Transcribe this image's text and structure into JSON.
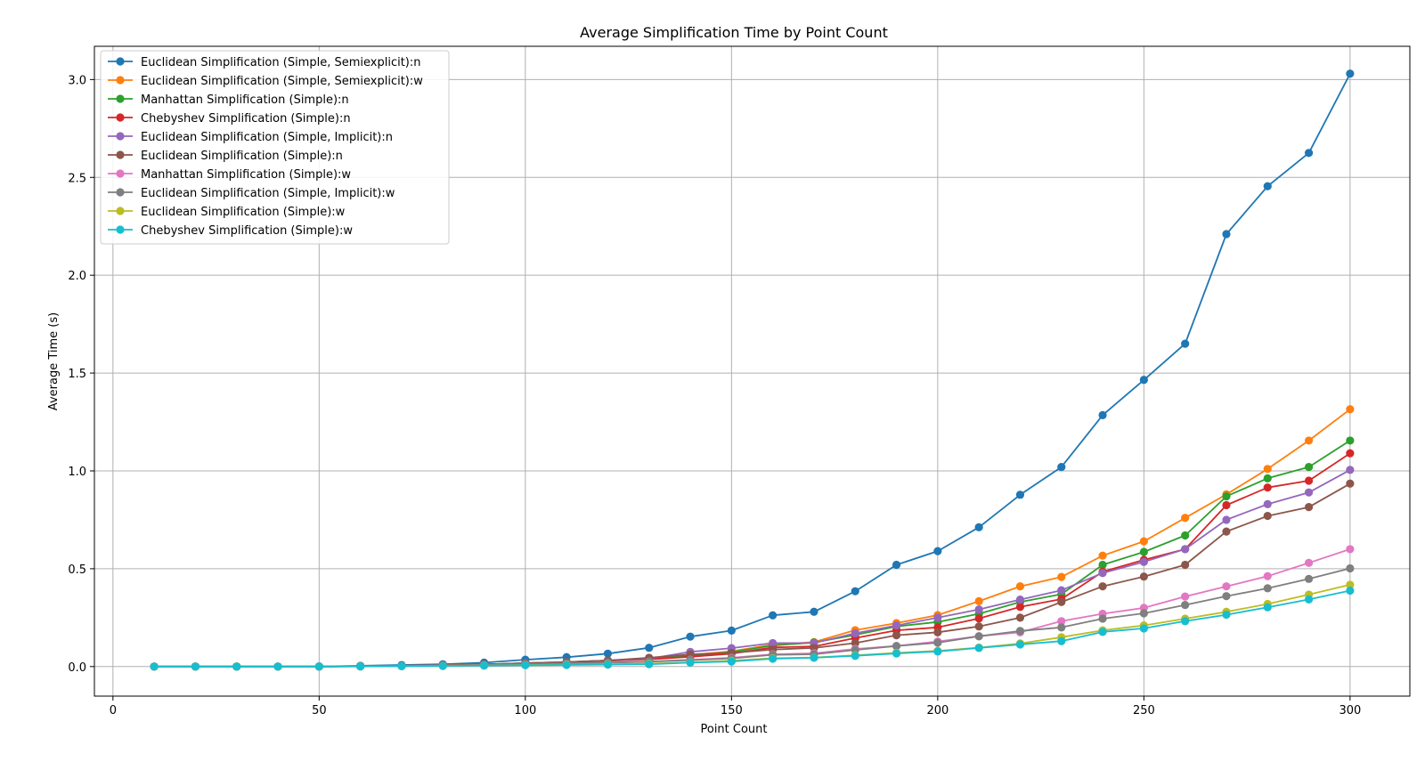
{
  "chart_data": {
    "type": "line",
    "title": "Average Simplification Time by Point Count",
    "xlabel": "Point Count",
    "ylabel": "Average Time (s)",
    "xlim": [
      -4.5,
      314.5
    ],
    "ylim": [
      -0.151,
      3.17
    ],
    "xticks": [
      0,
      50,
      100,
      150,
      200,
      250,
      300
    ],
    "yticks": [
      0.0,
      0.5,
      1.0,
      1.5,
      2.0,
      2.5,
      3.0
    ],
    "xtick_labels": [
      "0",
      "50",
      "100",
      "150",
      "200",
      "250",
      "300"
    ],
    "ytick_labels": [
      "0.0",
      "0.5",
      "1.0",
      "1.5",
      "2.0",
      "2.5",
      "3.0"
    ],
    "grid": true,
    "legend_position": "upper-left",
    "x": [
      10,
      20,
      30,
      40,
      50,
      60,
      70,
      80,
      90,
      100,
      110,
      120,
      130,
      140,
      150,
      160,
      170,
      180,
      190,
      200,
      210,
      220,
      230,
      240,
      250,
      260,
      270,
      280,
      290,
      300
    ],
    "series": [
      {
        "name": "Euclidean Simplification (Simple, Semiexplicit):n",
        "color": "#1f77b4",
        "values": [
          0.0,
          0.0,
          0.0,
          0.0,
          0.001,
          0.004,
          0.008,
          0.012,
          0.02,
          0.035,
          0.048,
          0.066,
          0.096,
          0.153,
          0.184,
          0.262,
          0.28,
          0.385,
          0.52,
          0.59,
          0.712,
          0.878,
          1.02,
          1.285,
          1.465,
          1.65,
          2.21,
          2.455,
          2.625,
          3.03
        ]
      },
      {
        "name": "Euclidean Simplification (Simple, Semiexplicit):w",
        "color": "#ff7f0e",
        "values": [
          0.0,
          0.0,
          0.0,
          0.0,
          0.0,
          0.002,
          0.004,
          0.007,
          0.011,
          0.018,
          0.023,
          0.031,
          0.042,
          0.06,
          0.078,
          0.112,
          0.125,
          0.186,
          0.222,
          0.263,
          0.334,
          0.41,
          0.458,
          0.567,
          0.64,
          0.76,
          0.88,
          1.01,
          1.155,
          1.315
        ]
      },
      {
        "name": "Manhattan Simplification (Simple):n",
        "color": "#2ca02c",
        "values": [
          0.0,
          0.0,
          0.0,
          0.0,
          0.0,
          0.002,
          0.004,
          0.007,
          0.011,
          0.018,
          0.023,
          0.031,
          0.04,
          0.056,
          0.074,
          0.108,
          0.123,
          0.162,
          0.205,
          0.228,
          0.27,
          0.33,
          0.37,
          0.52,
          0.586,
          0.67,
          0.87,
          0.962,
          1.02,
          1.155
        ]
      },
      {
        "name": "Chebyshev Simplification (Simple):n",
        "color": "#d62728",
        "values": [
          0.0,
          0.0,
          0.0,
          0.0,
          0.0,
          0.002,
          0.004,
          0.007,
          0.011,
          0.016,
          0.021,
          0.029,
          0.037,
          0.05,
          0.066,
          0.098,
          0.103,
          0.146,
          0.185,
          0.2,
          0.246,
          0.305,
          0.345,
          0.485,
          0.545,
          0.6,
          0.825,
          0.915,
          0.95,
          1.09
        ]
      },
      {
        "name": "Euclidean Simplification (Simple, Implicit):n",
        "color": "#9467bd",
        "values": [
          0.0,
          0.0,
          0.0,
          0.0,
          0.0,
          0.002,
          0.004,
          0.007,
          0.011,
          0.018,
          0.023,
          0.031,
          0.04,
          0.075,
          0.094,
          0.12,
          0.12,
          0.17,
          0.21,
          0.25,
          0.292,
          0.342,
          0.39,
          0.478,
          0.535,
          0.6,
          0.75,
          0.83,
          0.89,
          1.005
        ]
      },
      {
        "name": "Euclidean Simplification (Simple):n",
        "color": "#8c564b",
        "values": [
          0.0,
          0.0,
          0.0,
          0.0,
          0.0,
          0.002,
          0.004,
          0.007,
          0.011,
          0.016,
          0.023,
          0.031,
          0.045,
          0.062,
          0.07,
          0.087,
          0.095,
          0.12,
          0.16,
          0.175,
          0.205,
          0.25,
          0.33,
          0.41,
          0.46,
          0.52,
          0.69,
          0.77,
          0.815,
          0.935
        ]
      },
      {
        "name": "Manhattan Simplification (Simple):w",
        "color": "#e377c2",
        "values": [
          0.0,
          0.0,
          0.0,
          0.0,
          0.0,
          0.001,
          0.003,
          0.005,
          0.008,
          0.012,
          0.016,
          0.02,
          0.026,
          0.035,
          0.045,
          0.063,
          0.068,
          0.09,
          0.105,
          0.128,
          0.155,
          0.175,
          0.232,
          0.27,
          0.3,
          0.358,
          0.41,
          0.462,
          0.53,
          0.6
        ]
      },
      {
        "name": "Euclidean Simplification (Simple, Implicit):w",
        "color": "#7f7f7f",
        "values": [
          0.0,
          0.0,
          0.0,
          0.0,
          0.0,
          0.001,
          0.003,
          0.005,
          0.008,
          0.012,
          0.016,
          0.02,
          0.025,
          0.033,
          0.042,
          0.06,
          0.063,
          0.085,
          0.105,
          0.122,
          0.155,
          0.182,
          0.2,
          0.245,
          0.272,
          0.315,
          0.36,
          0.4,
          0.448,
          0.502
        ]
      },
      {
        "name": "Euclidean Simplification (Simple):w",
        "color": "#bcbd22",
        "values": [
          0.0,
          0.0,
          0.0,
          0.0,
          0.0,
          0.001,
          0.002,
          0.004,
          0.006,
          0.008,
          0.01,
          0.012,
          0.015,
          0.022,
          0.03,
          0.043,
          0.046,
          0.058,
          0.07,
          0.08,
          0.097,
          0.118,
          0.15,
          0.185,
          0.21,
          0.245,
          0.28,
          0.32,
          0.368,
          0.418
        ]
      },
      {
        "name": "Chebyshev Simplification (Simple):w",
        "color": "#17becf",
        "values": [
          0.0,
          0.0,
          0.0,
          0.0,
          0.0,
          0.001,
          0.002,
          0.003,
          0.005,
          0.007,
          0.008,
          0.01,
          0.012,
          0.02,
          0.026,
          0.04,
          0.045,
          0.055,
          0.067,
          0.077,
          0.095,
          0.113,
          0.13,
          0.177,
          0.195,
          0.232,
          0.265,
          0.303,
          0.343,
          0.388
        ]
      }
    ]
  }
}
